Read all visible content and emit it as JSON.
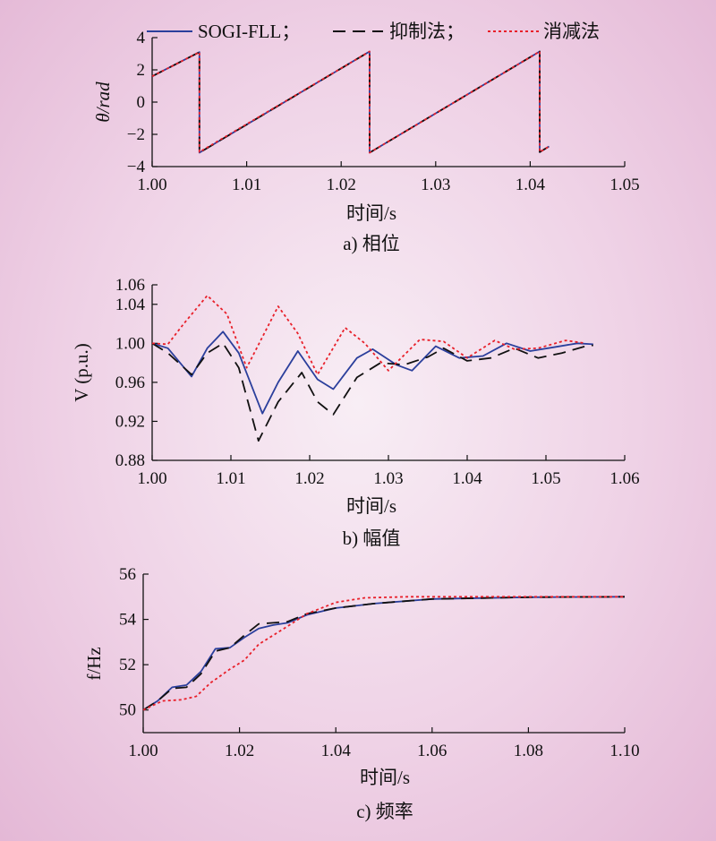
{
  "legend": [
    {
      "label": "SOGI-FLL；",
      "color": "#2b3f9c",
      "dash": "solid"
    },
    {
      "label": "抑制法；",
      "color": "#111111",
      "dash": "long-dash"
    },
    {
      "label": "消减法",
      "color": "#e8202a",
      "dash": "dotted"
    }
  ],
  "chart_data": [
    {
      "type": "line",
      "caption": "a) 相位",
      "xlabel": "时间/s",
      "ylabel": "θ/rad",
      "xlim": [
        1.0,
        1.05
      ],
      "ylim": [
        -4,
        4
      ],
      "xticks": [
        "1.00",
        "1.01",
        "1.02",
        "1.03",
        "1.04",
        "1.05"
      ],
      "yticks": [
        "−4",
        "−2",
        "0",
        "2",
        "4"
      ],
      "series": [
        {
          "name": "SOGI-FLL",
          "x": [
            1.0,
            1.005,
            1.005,
            1.023,
            1.023,
            1.041,
            1.041,
            1.042
          ],
          "y": [
            1.6,
            3.1,
            -3.14,
            3.14,
            -3.14,
            3.14,
            -3.1,
            -2.75
          ]
        },
        {
          "name": "抑制法",
          "x": [
            1.0,
            1.005,
            1.005,
            1.023,
            1.023,
            1.041,
            1.041,
            1.042
          ],
          "y": [
            1.6,
            3.1,
            -3.14,
            3.14,
            -3.14,
            3.14,
            -3.1,
            -2.75
          ]
        },
        {
          "name": "消减法",
          "x": [
            1.0,
            1.005,
            1.005,
            1.023,
            1.023,
            1.041,
            1.041,
            1.042
          ],
          "y": [
            1.6,
            3.1,
            -3.1,
            3.14,
            -3.14,
            3.14,
            -3.1,
            -2.75
          ]
        }
      ]
    },
    {
      "type": "line",
      "caption": "b) 幅值",
      "xlabel": "时间/s",
      "ylabel": "V (p.u.)",
      "xlim": [
        1.0,
        1.06
      ],
      "ylim": [
        0.88,
        1.06
      ],
      "xticks": [
        "1.00",
        "1.01",
        "1.02",
        "1.03",
        "1.04",
        "1.05",
        "1.06"
      ],
      "yticks": [
        "0.88",
        "0.92",
        "0.96",
        "1.00",
        "1.04",
        "1.06"
      ],
      "ytick_values": [
        0.88,
        0.92,
        0.96,
        1.0,
        1.04,
        1.06
      ],
      "series": [
        {
          "name": "SOGI-FLL",
          "x": [
            1.0,
            1.002,
            1.005,
            1.007,
            1.009,
            1.011,
            1.014,
            1.016,
            1.0185,
            1.021,
            1.023,
            1.026,
            1.028,
            1.031,
            1.033,
            1.036,
            1.039,
            1.042,
            1.045,
            1.048,
            1.051,
            1.054,
            1.056
          ],
          "y": [
            1.0,
            0.995,
            0.966,
            0.995,
            1.012,
            0.99,
            0.928,
            0.96,
            0.992,
            0.963,
            0.953,
            0.985,
            0.994,
            0.978,
            0.972,
            0.997,
            0.985,
            0.987,
            1.0,
            0.992,
            0.996,
            1.0,
            0.999
          ]
        },
        {
          "name": "抑制法",
          "x": [
            1.0,
            1.002,
            1.005,
            1.007,
            1.009,
            1.011,
            1.0135,
            1.016,
            1.019,
            1.021,
            1.023,
            1.026,
            1.029,
            1.032,
            1.035,
            1.037,
            1.04,
            1.043,
            1.046,
            1.049,
            1.052,
            1.055,
            1.056
          ],
          "y": [
            1.0,
            0.99,
            0.968,
            0.99,
            1.0,
            0.975,
            0.9,
            0.94,
            0.97,
            0.94,
            0.927,
            0.965,
            0.98,
            0.978,
            0.986,
            0.995,
            0.982,
            0.985,
            0.995,
            0.985,
            0.99,
            0.997,
            0.998
          ]
        },
        {
          "name": "消减法",
          "x": [
            1.0,
            1.002,
            1.004,
            1.007,
            1.0095,
            1.012,
            1.016,
            1.0185,
            1.021,
            1.0245,
            1.027,
            1.03,
            1.034,
            1.037,
            1.04,
            1.0435,
            1.046,
            1.049,
            1.0525,
            1.055
          ],
          "y": [
            1.0,
            0.999,
            1.02,
            1.049,
            1.03,
            0.975,
            1.038,
            1.01,
            0.968,
            1.016,
            1.0,
            0.972,
            1.004,
            1.002,
            0.985,
            1.003,
            0.994,
            0.995,
            1.003,
            1.0
          ]
        }
      ]
    },
    {
      "type": "line",
      "caption": "c) 频率",
      "xlabel": "时间/s",
      "ylabel": "f/Hz",
      "xlim": [
        1.0,
        1.1
      ],
      "ylim": [
        49,
        56
      ],
      "xticks": [
        "1.00",
        "1.02",
        "1.04",
        "1.06",
        "1.08",
        "1.10"
      ],
      "yticks": [
        "50",
        "52",
        "54",
        "56"
      ],
      "series": [
        {
          "name": "SOGI-FLL",
          "x": [
            1.0,
            1.003,
            1.006,
            1.009,
            1.012,
            1.015,
            1.018,
            1.021,
            1.024,
            1.027,
            1.03,
            1.034,
            1.04,
            1.048,
            1.06,
            1.08,
            1.1
          ],
          "y": [
            50.0,
            50.4,
            51.0,
            51.1,
            51.7,
            52.7,
            52.75,
            53.2,
            53.6,
            53.75,
            53.85,
            54.2,
            54.5,
            54.7,
            54.9,
            54.98,
            55.0
          ]
        },
        {
          "name": "抑制法",
          "x": [
            1.0,
            1.003,
            1.006,
            1.009,
            1.012,
            1.015,
            1.018,
            1.021,
            1.024,
            1.027,
            1.03,
            1.034,
            1.04,
            1.048,
            1.06,
            1.08,
            1.1
          ],
          "y": [
            50.0,
            50.4,
            50.95,
            51.0,
            51.6,
            52.6,
            52.75,
            53.3,
            53.8,
            53.85,
            53.9,
            54.25,
            54.5,
            54.7,
            54.9,
            54.98,
            55.0
          ]
        },
        {
          "name": "消减法",
          "x": [
            1.0,
            1.004,
            1.008,
            1.011,
            1.014,
            1.018,
            1.021,
            1.024,
            1.027,
            1.03,
            1.034,
            1.04,
            1.046,
            1.055,
            1.07,
            1.1
          ],
          "y": [
            50.0,
            50.4,
            50.45,
            50.6,
            51.2,
            51.8,
            52.2,
            52.9,
            53.3,
            53.7,
            54.25,
            54.75,
            54.95,
            55.0,
            55.0,
            55.0
          ]
        }
      ]
    }
  ]
}
